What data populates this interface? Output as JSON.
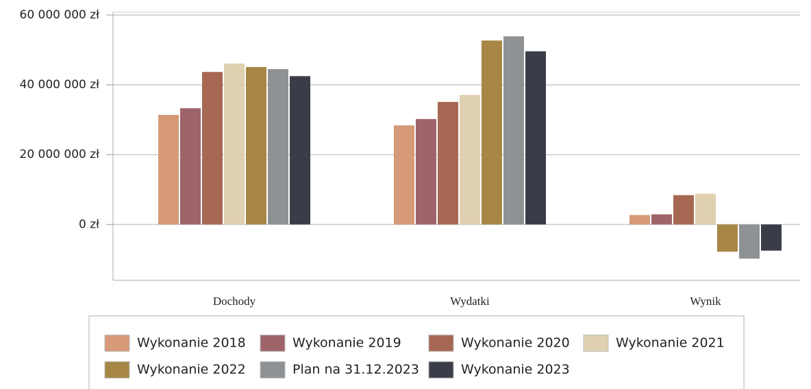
{
  "chart_data": {
    "type": "bar",
    "categories": [
      "Dochody",
      "Wydatki",
      "Wynik"
    ],
    "series": [
      {
        "name": "Wykonanie 2018",
        "color": "#d69a78",
        "values": [
          31400000,
          28400000,
          2700000
        ]
      },
      {
        "name": "Wykonanie 2019",
        "color": "#9e6469",
        "values": [
          33300000,
          30200000,
          2900000
        ]
      },
      {
        "name": "Wykonanie 2020",
        "color": "#a66852",
        "values": [
          43700000,
          35100000,
          8400000
        ]
      },
      {
        "name": "Wykonanie 2021",
        "color": "#dfd0b0",
        "values": [
          46100000,
          37100000,
          8800000
        ]
      },
      {
        "name": "Wykonanie 2022",
        "color": "#a88646",
        "values": [
          45100000,
          52700000,
          -7800000
        ]
      },
      {
        "name": "Plan na 31.12.2023",
        "color": "#8e9294",
        "values": [
          44500000,
          53900000,
          -9800000
        ]
      },
      {
        "name": "Wykonanie 2023",
        "color": "#3a3c47",
        "values": [
          42500000,
          49600000,
          -7500000
        ]
      }
    ],
    "ylim": [
      -16000000,
      60000000
    ],
    "yticks": [
      {
        "value": 0,
        "label": "0 zł"
      },
      {
        "value": 20000000,
        "label": "20 000 000 zł"
      },
      {
        "value": 40000000,
        "label": "40 000 000 zł"
      },
      {
        "value": 60000000,
        "label": "60 000 000 zł"
      }
    ],
    "grid": true,
    "legend": "bottom"
  }
}
